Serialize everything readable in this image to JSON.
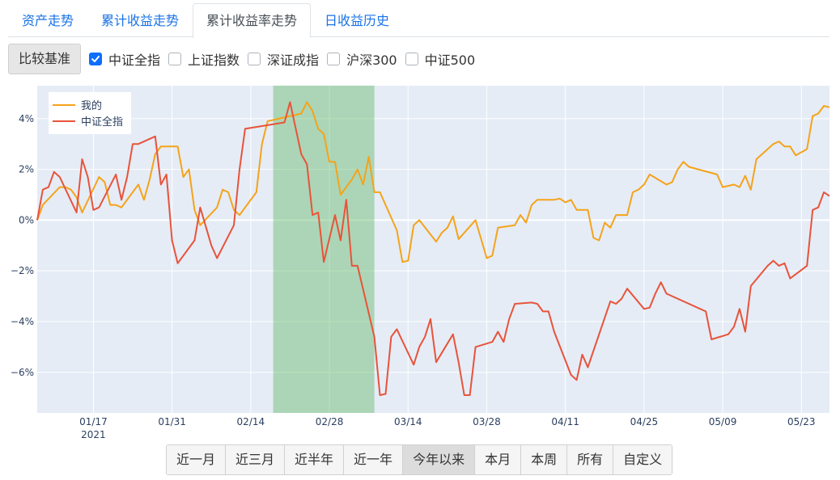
{
  "tabs": [
    {
      "label": "资产走势",
      "active": false
    },
    {
      "label": "累计收益走势",
      "active": false
    },
    {
      "label": "累计收益率走势",
      "active": true
    },
    {
      "label": "日收益历史",
      "active": false
    }
  ],
  "filter": {
    "base_label": "比较基准",
    "options": [
      {
        "label": "中证全指",
        "checked": true
      },
      {
        "label": "上证指数",
        "checked": false
      },
      {
        "label": "深证成指",
        "checked": false
      },
      {
        "label": "沪深300",
        "checked": false
      },
      {
        "label": "中证500",
        "checked": false
      }
    ]
  },
  "ranges": [
    {
      "label": "近一月",
      "active": false
    },
    {
      "label": "近三月",
      "active": false
    },
    {
      "label": "近半年",
      "active": false
    },
    {
      "label": "近一年",
      "active": false
    },
    {
      "label": "今年以来",
      "active": true
    },
    {
      "label": "本月",
      "active": false
    },
    {
      "label": "本周",
      "active": false
    },
    {
      "label": "所有",
      "active": false
    },
    {
      "label": "自定义",
      "active": false
    }
  ],
  "chart_data": {
    "type": "line",
    "x_ticks": [
      {
        "date": "2021-01-17",
        "label": "01/17",
        "sub": "2021"
      },
      {
        "date": "2021-01-31",
        "label": "01/31",
        "sub": ""
      },
      {
        "date": "2021-02-14",
        "label": "02/14",
        "sub": ""
      },
      {
        "date": "2021-02-28",
        "label": "02/28",
        "sub": ""
      },
      {
        "date": "2021-03-14",
        "label": "03/14",
        "sub": ""
      },
      {
        "date": "2021-03-28",
        "label": "03/28",
        "sub": ""
      },
      {
        "date": "2021-04-11",
        "label": "04/11",
        "sub": ""
      },
      {
        "date": "2021-04-25",
        "label": "04/25",
        "sub": ""
      },
      {
        "date": "2021-05-09",
        "label": "05/09",
        "sub": ""
      },
      {
        "date": "2021-05-23",
        "label": "05/23",
        "sub": ""
      }
    ],
    "xlim": [
      "2021-01-07",
      "2021-05-28"
    ],
    "ylim": [
      -7.6,
      5.3
    ],
    "y_ticks": [
      {
        "value": 4,
        "label": "4%"
      },
      {
        "value": 2,
        "label": "2%"
      },
      {
        "value": 0,
        "label": "0%"
      },
      {
        "value": -2,
        "label": "−2%"
      },
      {
        "value": -4,
        "label": "−4%"
      },
      {
        "value": -6,
        "label": "−6%"
      }
    ],
    "shaded_range": {
      "start": "2021-02-18",
      "end": "2021-03-08",
      "color": "#4caf50"
    },
    "legend_position": "top-left",
    "series": [
      {
        "name": "我的",
        "color": "#f5a31a",
        "points": [
          [
            "2021-01-07",
            0.0
          ],
          [
            "2021-01-08",
            0.6
          ],
          [
            "2021-01-11",
            1.3
          ],
          [
            "2021-01-12",
            1.3
          ],
          [
            "2021-01-13",
            1.2
          ],
          [
            "2021-01-14",
            0.9
          ],
          [
            "2021-01-15",
            0.3
          ],
          [
            "2021-01-18",
            1.7
          ],
          [
            "2021-01-19",
            1.5
          ],
          [
            "2021-01-20",
            0.6
          ],
          [
            "2021-01-21",
            0.6
          ],
          [
            "2021-01-22",
            0.5
          ],
          [
            "2021-01-25",
            1.4
          ],
          [
            "2021-01-26",
            0.8
          ],
          [
            "2021-01-27",
            1.6
          ],
          [
            "2021-01-28",
            2.6
          ],
          [
            "2021-01-29",
            2.9
          ],
          [
            "2021-02-01",
            2.9
          ],
          [
            "2021-02-02",
            1.7
          ],
          [
            "2021-02-03",
            2.0
          ],
          [
            "2021-02-04",
            0.4
          ],
          [
            "2021-02-05",
            -0.2
          ],
          [
            "2021-02-08",
            0.5
          ],
          [
            "2021-02-09",
            1.2
          ],
          [
            "2021-02-10",
            1.1
          ],
          [
            "2021-02-11",
            0.4
          ],
          [
            "2021-02-12",
            0.2
          ],
          [
            "2021-02-15",
            1.1
          ],
          [
            "2021-02-16",
            3.0
          ],
          [
            "2021-02-17",
            3.9
          ],
          [
            "2021-02-23",
            4.2
          ],
          [
            "2021-02-24",
            4.65
          ],
          [
            "2021-02-25",
            4.3
          ],
          [
            "2021-02-26",
            3.6
          ],
          [
            "2021-02-27",
            3.4
          ],
          [
            "2021-02-28",
            2.3
          ],
          [
            "2021-03-01",
            2.3
          ],
          [
            "2021-03-02",
            1.0
          ],
          [
            "2021-03-04",
            1.6
          ],
          [
            "2021-03-05",
            2.0
          ],
          [
            "2021-03-06",
            1.4
          ],
          [
            "2021-03-07",
            2.5
          ],
          [
            "2021-03-08",
            1.1
          ],
          [
            "2021-03-09",
            1.1
          ],
          [
            "2021-03-12",
            -0.4
          ],
          [
            "2021-03-13",
            -1.65
          ],
          [
            "2021-03-14",
            -1.6
          ],
          [
            "2021-03-15",
            -0.2
          ],
          [
            "2021-03-16",
            0.0
          ],
          [
            "2021-03-19",
            -0.85
          ],
          [
            "2021-03-20",
            -0.5
          ],
          [
            "2021-03-21",
            -0.3
          ],
          [
            "2021-03-22",
            0.15
          ],
          [
            "2021-03-23",
            -0.75
          ],
          [
            "2021-03-26",
            0.0
          ],
          [
            "2021-03-28",
            -1.5
          ],
          [
            "2021-03-29",
            -1.4
          ],
          [
            "2021-03-30",
            -0.3
          ],
          [
            "2021-04-02",
            -0.2
          ],
          [
            "2021-04-03",
            0.2
          ],
          [
            "2021-04-04",
            -0.1
          ],
          [
            "2021-04-05",
            0.6
          ],
          [
            "2021-04-06",
            0.8
          ],
          [
            "2021-04-09",
            0.8
          ],
          [
            "2021-04-10",
            0.85
          ],
          [
            "2021-04-11",
            0.7
          ],
          [
            "2021-04-12",
            0.8
          ],
          [
            "2021-04-13",
            0.4
          ],
          [
            "2021-04-15",
            0.4
          ],
          [
            "2021-04-16",
            -0.7
          ],
          [
            "2021-04-17",
            -0.8
          ],
          [
            "2021-04-18",
            -0.1
          ],
          [
            "2021-04-19",
            -0.3
          ],
          [
            "2021-04-20",
            0.2
          ],
          [
            "2021-04-22",
            0.2
          ],
          [
            "2021-04-23",
            1.1
          ],
          [
            "2021-04-24",
            1.2
          ],
          [
            "2021-04-25",
            1.4
          ],
          [
            "2021-04-26",
            1.8
          ],
          [
            "2021-04-29",
            1.4
          ],
          [
            "2021-04-30",
            1.5
          ],
          [
            "2021-05-01",
            2.0
          ],
          [
            "2021-05-02",
            2.3
          ],
          [
            "2021-05-03",
            2.1
          ],
          [
            "2021-05-08",
            1.8
          ],
          [
            "2021-05-09",
            1.3
          ],
          [
            "2021-05-11",
            1.4
          ],
          [
            "2021-05-12",
            1.3
          ],
          [
            "2021-05-13",
            1.75
          ],
          [
            "2021-05-14",
            1.2
          ],
          [
            "2021-05-15",
            2.4
          ],
          [
            "2021-05-18",
            3.0
          ],
          [
            "2021-05-19",
            3.1
          ],
          [
            "2021-05-20",
            2.9
          ],
          [
            "2021-05-21",
            2.9
          ],
          [
            "2021-05-22",
            2.55
          ],
          [
            "2021-05-24",
            2.8
          ],
          [
            "2021-05-25",
            4.1
          ],
          [
            "2021-05-26",
            4.2
          ],
          [
            "2021-05-27",
            4.5
          ],
          [
            "2021-05-28",
            4.45
          ]
        ]
      },
      {
        "name": "中证全指",
        "color": "#e8533a",
        "points": [
          [
            "2021-01-07",
            0.0
          ],
          [
            "2021-01-08",
            1.2
          ],
          [
            "2021-01-09",
            1.3
          ],
          [
            "2021-01-10",
            1.9
          ],
          [
            "2021-01-11",
            1.7
          ],
          [
            "2021-01-14",
            0.3
          ],
          [
            "2021-01-15",
            2.4
          ],
          [
            "2021-01-16",
            1.7
          ],
          [
            "2021-01-17",
            0.4
          ],
          [
            "2021-01-18",
            0.5
          ],
          [
            "2021-01-21",
            1.8
          ],
          [
            "2021-01-22",
            0.8
          ],
          [
            "2021-01-23",
            1.7
          ],
          [
            "2021-01-24",
            3.0
          ],
          [
            "2021-01-25",
            3.0
          ],
          [
            "2021-01-28",
            3.3
          ],
          [
            "2021-01-29",
            1.4
          ],
          [
            "2021-01-30",
            1.8
          ],
          [
            "2021-01-31",
            -0.8
          ],
          [
            "2021-02-01",
            -1.7
          ],
          [
            "2021-02-04",
            -0.8
          ],
          [
            "2021-02-05",
            0.5
          ],
          [
            "2021-02-07",
            -1.0
          ],
          [
            "2021-02-08",
            -1.5
          ],
          [
            "2021-02-11",
            -0.2
          ],
          [
            "2021-02-12",
            2.0
          ],
          [
            "2021-02-13",
            3.6
          ],
          [
            "2021-02-20",
            3.85
          ],
          [
            "2021-02-21",
            4.65
          ],
          [
            "2021-02-23",
            2.6
          ],
          [
            "2021-02-24",
            2.2
          ],
          [
            "2021-02-25",
            0.2
          ],
          [
            "2021-02-26",
            0.3
          ],
          [
            "2021-02-27",
            -1.65
          ],
          [
            "2021-03-01",
            0.2
          ],
          [
            "2021-03-02",
            -0.8
          ],
          [
            "2021-03-03",
            0.8
          ],
          [
            "2021-03-04",
            -1.8
          ],
          [
            "2021-03-05",
            -1.8
          ],
          [
            "2021-03-08",
            -4.6
          ],
          [
            "2021-03-09",
            -6.9
          ],
          [
            "2021-03-10",
            -6.85
          ],
          [
            "2021-03-11",
            -4.6
          ],
          [
            "2021-03-12",
            -4.3
          ],
          [
            "2021-03-15",
            -5.7
          ],
          [
            "2021-03-16",
            -5.0
          ],
          [
            "2021-03-17",
            -4.6
          ],
          [
            "2021-03-18",
            -3.9
          ],
          [
            "2021-03-19",
            -5.6
          ],
          [
            "2021-03-22",
            -4.5
          ],
          [
            "2021-03-23",
            -5.6
          ],
          [
            "2021-03-24",
            -6.9
          ],
          [
            "2021-03-25",
            -6.9
          ],
          [
            "2021-03-26",
            -5.0
          ],
          [
            "2021-03-29",
            -4.8
          ],
          [
            "2021-03-30",
            -4.4
          ],
          [
            "2021-03-31",
            -4.8
          ],
          [
            "2021-04-01",
            -3.9
          ],
          [
            "2021-04-02",
            -3.3
          ],
          [
            "2021-04-05",
            -3.25
          ],
          [
            "2021-04-06",
            -3.3
          ],
          [
            "2021-04-07",
            -3.6
          ],
          [
            "2021-04-08",
            -3.6
          ],
          [
            "2021-04-09",
            -4.4
          ],
          [
            "2021-04-12",
            -6.1
          ],
          [
            "2021-04-13",
            -6.3
          ],
          [
            "2021-04-14",
            -5.3
          ],
          [
            "2021-04-15",
            -5.8
          ],
          [
            "2021-04-19",
            -3.2
          ],
          [
            "2021-04-20",
            -3.3
          ],
          [
            "2021-04-21",
            -3.1
          ],
          [
            "2021-04-22",
            -2.7
          ],
          [
            "2021-04-25",
            -3.5
          ],
          [
            "2021-04-26",
            -3.45
          ],
          [
            "2021-04-27",
            -2.9
          ],
          [
            "2021-04-28",
            -2.45
          ],
          [
            "2021-04-29",
            -2.9
          ],
          [
            "2021-05-06",
            -3.6
          ],
          [
            "2021-05-07",
            -4.7
          ],
          [
            "2021-05-10",
            -4.5
          ],
          [
            "2021-05-11",
            -4.2
          ],
          [
            "2021-05-12",
            -3.5
          ],
          [
            "2021-05-13",
            -4.4
          ],
          [
            "2021-05-14",
            -2.6
          ],
          [
            "2021-05-17",
            -1.8
          ],
          [
            "2021-05-18",
            -1.6
          ],
          [
            "2021-05-19",
            -1.8
          ],
          [
            "2021-05-20",
            -1.7
          ],
          [
            "2021-05-21",
            -2.3
          ],
          [
            "2021-05-24",
            -1.8
          ],
          [
            "2021-05-25",
            0.4
          ],
          [
            "2021-05-26",
            0.5
          ],
          [
            "2021-05-27",
            1.1
          ],
          [
            "2021-05-28",
            0.95
          ]
        ]
      }
    ]
  }
}
